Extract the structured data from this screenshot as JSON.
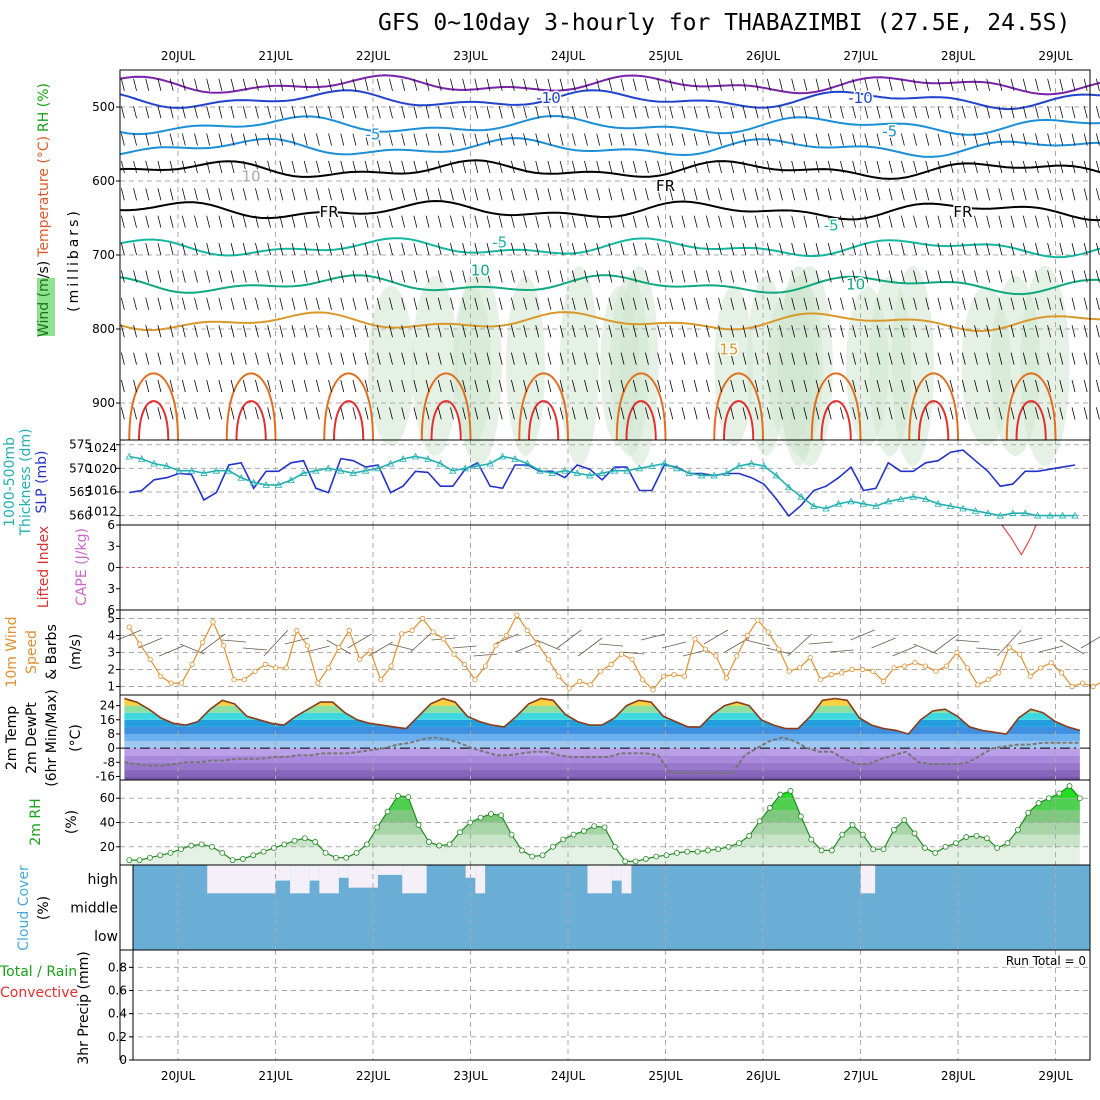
{
  "title": "GFS 0~10day 3-hourly for THABAZIMBI (27.5E, 24.5S)",
  "chart_data": [
    {
      "type": "line",
      "panel": "upper-air",
      "x": [
        "20JUL",
        "21JUL",
        "22JUL",
        "23JUL",
        "24JUL",
        "25JUL",
        "26JUL",
        "27JUL",
        "28JUL",
        "29JUL"
      ],
      "ylabel_parts": [
        {
          "text": "Wind (m/s)",
          "color": "#000000"
        },
        {
          "text": "Temperature (°C)",
          "color": "#e05a2b"
        },
        {
          "text": "RH (%)",
          "color": "#1aa01a"
        }
      ],
      "ylabel2": "(millibars)",
      "y_ticks": [
        "500",
        "600",
        "700",
        "800",
        "900"
      ],
      "y_tick_values": [
        500,
        600,
        700,
        800,
        900
      ],
      "ylim": [
        450,
        950
      ],
      "contour_labels": [
        {
          "text": "-10",
          "color": "#2244cc",
          "x": 3.8,
          "y": 488
        },
        {
          "text": "-10",
          "color": "#2244cc",
          "x": 7.0,
          "y": 488
        },
        {
          "text": "-5",
          "color": "#1b8fd8",
          "x": 2.0,
          "y": 537
        },
        {
          "text": "-5",
          "color": "#1b8fd8",
          "x": 7.3,
          "y": 533
        },
        {
          "text": "FR",
          "color": "#000000",
          "x": 1.55,
          "y": 642
        },
        {
          "text": "FR",
          "color": "#000000",
          "x": 5.0,
          "y": 607
        },
        {
          "text": "FR",
          "color": "#000000",
          "x": 8.05,
          "y": 642
        },
        {
          "text": "-5",
          "color": "#14b8a0",
          "x": 3.3,
          "y": 683
        },
        {
          "text": "-5",
          "color": "#14b8a0",
          "x": 6.7,
          "y": 660
        },
        {
          "text": "10",
          "color": "#10a880",
          "x": 3.1,
          "y": 721
        },
        {
          "text": "10",
          "color": "#10a880",
          "x": 6.95,
          "y": 740
        },
        {
          "text": "15",
          "color": "#d9992a",
          "x": 5.65,
          "y": 828
        },
        {
          "text": "10",
          "color": "#aaaaaa",
          "x": 0.75,
          "y": 594
        }
      ]
    },
    {
      "type": "line",
      "panel": "thickness-slp",
      "ylabel_parts": [
        {
          "text": "1000-500mb",
          "color": "#22b0b0"
        },
        {
          "text": "Thickness (dm)",
          "color": "#22b0b0"
        },
        {
          "text": "SLP (mb)",
          "color": "#2233cc"
        }
      ],
      "y_left_ticks": [
        "560",
        "565",
        "570",
        "575"
      ],
      "y_left_values": [
        560,
        565,
        570,
        575
      ],
      "y_left_lim": [
        558,
        576
      ],
      "y_right_ticks": [
        "1012",
        "1016",
        "1020",
        "1024"
      ],
      "y_right_values": [
        1012,
        1016,
        1020,
        1024
      ],
      "y_right_lim": [
        1009.5,
        1025.5
      ],
      "series": [
        {
          "name": "SLP",
          "color": "#2233cc",
          "axis": "right",
          "values": [
            1015.6,
            1016,
            1018,
            1018.4,
            1019.2,
            1019,
            1014.2,
            1015.6,
            1020.8,
            1021.2,
            1016.4,
            1019.6,
            1019.6,
            1021.2,
            1021.6,
            1016.4,
            1015.6,
            1022,
            1021.6,
            1020.4,
            1020.8,
            1015.6,
            1016.8,
            1019.6,
            1019.4,
            1016.8,
            1016.8,
            1020,
            1021.2,
            1016.8,
            1016.4,
            1020.8,
            1020.8,
            1019.6,
            1019.6,
            1018.4,
            1020.8,
            1020,
            1018,
            1020.4,
            1020.4,
            1016,
            1016,
            1020.8,
            1020.4,
            1019.2,
            1019.2,
            1018.8,
            1019.2,
            1019.2,
            1018.4,
            1017.2,
            1014.4,
            1011.2,
            1013.2,
            1016,
            1016.8,
            1018.4,
            1020.4,
            1016,
            1016.4,
            1021.2,
            1019.6,
            1019.6,
            1021.2,
            1021.6,
            1023.2,
            1023.6,
            1021.6,
            1019.6,
            1016.8,
            1017.2,
            1019.6,
            1019.6,
            1020,
            1020.4,
            1020.8
          ]
        },
        {
          "name": "Thickness",
          "color": "#22b0b0",
          "axis": "left",
          "values": [
            572.5,
            572,
            571,
            570.5,
            569.5,
            569.5,
            569,
            569.5,
            569.5,
            568,
            567,
            566.5,
            566.5,
            567.5,
            569,
            569.5,
            570,
            569.5,
            569,
            569.5,
            570,
            571,
            572,
            572.5,
            572,
            571,
            569.5,
            570,
            570.5,
            571,
            572.5,
            572,
            571,
            569.5,
            569,
            569.5,
            569,
            568.5,
            569,
            569.5,
            569.5,
            570,
            570.5,
            571,
            570,
            569,
            568.5,
            568.5,
            569,
            570.5,
            571,
            570.5,
            568.5,
            566,
            564,
            562,
            561.5,
            562.5,
            563,
            562.5,
            562,
            563,
            563.5,
            564,
            563.5,
            562.5,
            562,
            561.5,
            561,
            560.5,
            560,
            560.5,
            560.5,
            560,
            560,
            560,
            560
          ]
        }
      ]
    },
    {
      "type": "line",
      "panel": "lifted-index-cape",
      "ylabel_parts": [
        {
          "text": "Lifted Index",
          "color": "#e03030"
        },
        {
          "text": "CAPE (J/kg)",
          "color": "#cc66cc"
        }
      ],
      "y_ticks": [
        "6",
        "3",
        "0",
        "3",
        "6"
      ],
      "y_tick_values": [
        -6,
        -3,
        0,
        3,
        6
      ],
      "ylim": [
        -6,
        6
      ],
      "reference_line": 0,
      "series": [
        {
          "name": "Lifted Index",
          "color": "#e05050",
          "points": [
            [
              8.45,
              6
            ],
            [
              8.55,
              4.1
            ],
            [
              8.65,
              1.8
            ],
            [
              8.75,
              4.3
            ],
            [
              8.8,
              6
            ]
          ]
        }
      ]
    },
    {
      "type": "line",
      "panel": "10m-wind",
      "ylabel_parts": [
        {
          "text": "10m Wind",
          "color": "#e09030"
        },
        {
          "text": "Speed",
          "color": "#e09030"
        },
        {
          "text": "& Barbs",
          "color": "#000000"
        },
        {
          "text": "(m/s)",
          "color": "#000000"
        }
      ],
      "y_ticks": [
        "1",
        "2",
        "3",
        "4",
        "5"
      ],
      "y_tick_values": [
        1,
        2,
        3,
        4,
        5
      ],
      "ylim": [
        0.5,
        5.5
      ],
      "series": [
        {
          "name": "Speed",
          "color": "#e09030",
          "values": [
            4.5,
            3.5,
            2.6,
            1.6,
            1.2,
            1.2,
            2.3,
            3.6,
            4.8,
            3.4,
            1.4,
            1.4,
            1.9,
            2.3,
            2.1,
            2.1,
            4.3,
            3.4,
            1.2,
            2.1,
            3.3,
            4.3,
            2.6,
            3.1,
            1.4,
            2.2,
            4.1,
            4.3,
            5.0,
            4.2,
            3.8,
            2.9,
            2.3,
            1.4,
            2.2,
            3.4,
            4.0,
            5.2,
            4.3,
            3.5,
            2.6,
            1.6,
            0.9,
            1.3,
            1.1,
            1.9,
            2.3,
            2.9,
            2.6,
            1.4,
            0.8,
            1.6,
            1.7,
            1.6,
            3.8,
            3.2,
            2.8,
            1.5,
            2.8,
            4.0,
            4.9,
            4.2,
            3.2,
            1.9,
            2.1,
            2.7,
            1.4,
            1.7,
            1.8,
            2.0,
            2.0,
            1.9,
            1.3,
            2.1,
            2.2,
            2.4,
            2.2,
            1.9,
            2.2,
            3.0,
            2.1,
            1.1,
            1.4,
            1.8,
            3.3,
            2.9,
            1.6,
            2.1,
            2.4,
            1.8,
            1.0,
            1.2,
            1.0,
            1.3,
            1.1
          ]
        }
      ]
    },
    {
      "type": "area",
      "panel": "2m-temp",
      "ylabel_parts": [
        {
          "text": "2m Temp",
          "color": "#000000"
        },
        {
          "text": "2m DewPt",
          "color": "#000000"
        },
        {
          "text": "(6hr Min/Max)",
          "color": "#000000"
        },
        {
          "text": "(°C)",
          "color": "#000000"
        }
      ],
      "y_ticks": [
        "-16",
        "-8",
        "0",
        "8",
        "16",
        "24"
      ],
      "y_tick_values": [
        -16,
        -8,
        0,
        8,
        16,
        24
      ],
      "ylim": [
        -18,
        30
      ],
      "series": [
        {
          "name": "2m Temp",
          "color": "#8b3a1a",
          "values": [
            28,
            26,
            22,
            17,
            14,
            13,
            15,
            22,
            27,
            25,
            18,
            16,
            14,
            13,
            18,
            22,
            26,
            26,
            20,
            16,
            14,
            13,
            12,
            11,
            18,
            25,
            28,
            26,
            18,
            15,
            13,
            12,
            18,
            25,
            28,
            27,
            19,
            15,
            13,
            13,
            17,
            24,
            27,
            26,
            18,
            15,
            12,
            12,
            19,
            24,
            26,
            24,
            16,
            13,
            11,
            11,
            18,
            27,
            28,
            27,
            17,
            13,
            11,
            10,
            8,
            16,
            21,
            22,
            18,
            12,
            10,
            9,
            8,
            17,
            22,
            20,
            15,
            12,
            10
          ]
        },
        {
          "name": "2m DewPt",
          "color": "#888888",
          "values": [
            -8,
            -9,
            -10,
            -10,
            -9,
            -8,
            -8,
            -7,
            -7,
            -6,
            -6,
            -6,
            -5,
            -5,
            -4,
            -4,
            -3,
            -3,
            -3,
            -2,
            -1,
            0,
            2,
            3,
            5,
            6,
            5,
            3,
            0,
            -2,
            -4,
            -4,
            -3,
            -2,
            -2,
            -4,
            -5,
            -5,
            -5,
            -5,
            -3,
            -3,
            -3,
            -4,
            -14,
            -14,
            -14,
            -14,
            -14,
            -14,
            -4,
            0,
            4,
            6,
            4,
            0,
            -2,
            -2,
            -6,
            -9,
            -9,
            -6,
            -4,
            -2,
            -8,
            -9,
            -9,
            -9,
            -8,
            -4,
            0,
            1,
            2,
            2,
            3,
            3,
            3,
            3
          ]
        }
      ]
    },
    {
      "type": "area",
      "panel": "2m-rh",
      "ylabel_parts": [
        {
          "text": "2m RH",
          "color": "#1aa01a"
        },
        {
          "text": "(%)",
          "color": "#000000"
        }
      ],
      "y_ticks": [
        "20",
        "40",
        "60"
      ],
      "y_tick_values": [
        20,
        40,
        60
      ],
      "ylim": [
        5,
        75
      ],
      "series": [
        {
          "name": "2m RH",
          "color": "#228b22",
          "values": [
            9,
            9,
            11,
            13,
            15,
            18,
            21,
            22,
            20,
            15,
            9,
            10,
            13,
            16,
            19,
            22,
            25,
            27,
            24,
            15,
            11,
            11,
            15,
            22,
            36,
            49,
            62,
            61,
            38,
            24,
            21,
            22,
            32,
            40,
            44,
            47,
            46,
            30,
            17,
            12,
            13,
            20,
            26,
            30,
            33,
            37,
            36,
            20,
            8,
            8,
            10,
            12,
            13,
            15,
            16,
            16,
            17,
            18,
            20,
            23,
            29,
            41,
            52,
            63,
            66,
            45,
            26,
            17,
            17,
            30,
            38,
            30,
            18,
            18,
            34,
            42,
            31,
            19,
            15,
            20,
            23,
            28,
            29,
            27,
            19,
            23,
            34,
            48,
            56,
            60,
            64,
            70,
            60
          ]
        }
      ]
    },
    {
      "type": "heatmap",
      "panel": "cloud-cover",
      "ylabel_parts": [
        {
          "text": "Cloud Cover",
          "color": "#44aadd"
        },
        {
          "text": "(%)",
          "color": "#000000"
        }
      ],
      "levels": [
        "high",
        "middle",
        "low"
      ],
      "clear_blocks_high": [
        [
          0.3,
          1.0,
          1.0
        ],
        [
          1.0,
          1.15,
          0.55
        ],
        [
          1.15,
          1.35,
          1.0
        ],
        [
          1.35,
          1.45,
          0.55
        ],
        [
          1.45,
          1.65,
          1.0
        ],
        [
          1.65,
          1.75,
          0.45
        ],
        [
          1.75,
          2.05,
          0.8
        ],
        [
          2.05,
          2.3,
          0.35
        ],
        [
          2.3,
          2.55,
          1.0
        ],
        [
          2.95,
          3.05,
          0.45
        ],
        [
          3.05,
          3.15,
          1.0
        ],
        [
          4.2,
          4.45,
          1.0
        ],
        [
          4.45,
          4.55,
          0.55
        ],
        [
          4.55,
          4.65,
          1.0
        ],
        [
          7.0,
          7.15,
          1.0
        ]
      ]
    },
    {
      "type": "bar",
      "panel": "precip",
      "ylabel_parts": [
        {
          "text": "Total / Rain",
          "color": "#1aa01a"
        },
        {
          "text": "Convective",
          "color": "#e03030"
        },
        {
          "text": "3hr Precip (mm)",
          "color": "#000000"
        }
      ],
      "y_ticks": [
        "0",
        "0.2",
        "0.4",
        "0.6",
        "0.8"
      ],
      "y_tick_values": [
        0,
        0.2,
        0.4,
        0.6,
        0.8
      ],
      "ylim": [
        0,
        0.95
      ],
      "run_total_label": "Run Total = 0",
      "values": []
    }
  ]
}
